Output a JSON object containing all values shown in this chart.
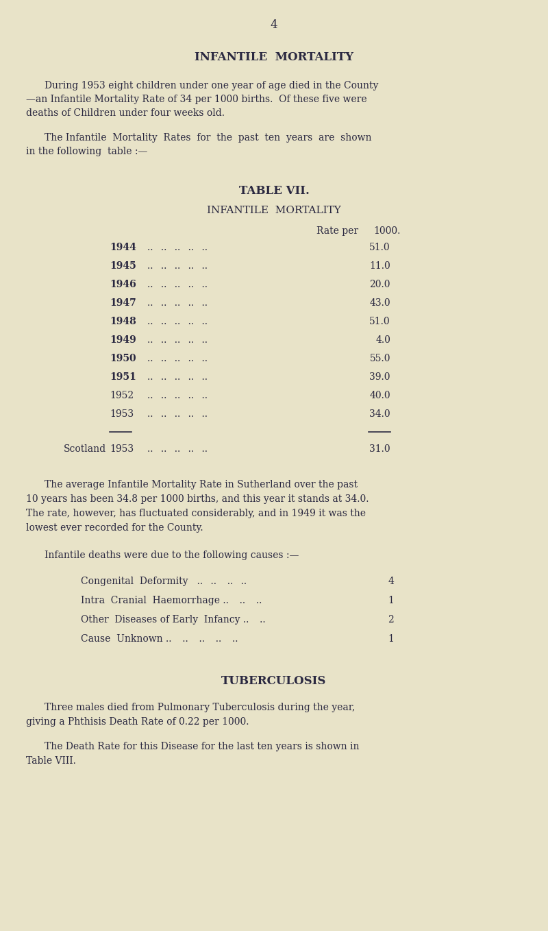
{
  "background_color": "#e8e3c8",
  "text_color": "#2a2840",
  "page_number": "4",
  "section_title": "INFANTILE  MORTALITY",
  "para1_line1": "During 1953 eight children under one year of age died in the County",
  "para1_line2": "—an Infantile Mortality Rate of 34 per 1000 births.  Of these five were",
  "para1_line3": "deaths of Children under four weeks old.",
  "para2_line1": "The Infantile  Mortality  Rates  for  the  past  ten  years  are  shown",
  "para2_line2": "in the following  table :—",
  "table_title": "TABLE VII.",
  "table_subtitle": "INFANTILE  MORTALITY",
  "table_header_left": "Rate per",
  "table_header_right": "1000.",
  "table_years": [
    "1944",
    "1945",
    "1946",
    "1947",
    "1948",
    "1949",
    "1950",
    "1951",
    "1952",
    "1953"
  ],
  "table_rates": [
    "51.0",
    "11.0",
    "20.0",
    "43.0",
    "51.0",
    "4.0",
    "55.0",
    "39.0",
    "40.0",
    "34.0"
  ],
  "table_dots": "..  ..  ..  ..  ..",
  "scotland_year": "1953",
  "scotland_dots": "..  ..  ..  ..  ..",
  "scotland_rate": "31.0",
  "para3_line1": "The average Infantile Mortality Rate in Sutherland over the past",
  "para3_line2": "10 years has been 34.8 per 1000 births, and this year it stands at 34.0.",
  "para3_line3": "The rate, however, has fluctuated considerably, and in 1949 it was the",
  "para3_line4": "lowest ever recorded for the County.",
  "causes_intro": "Infantile deaths were due to the following causes :—",
  "cause1_text": "Congenital  Deformity   ..  ..   ..  ..",
  "cause1_num": "4",
  "cause2_text": "Intra  Cranial  Haemorrhage ..   ..   ..",
  "cause2_num": "1",
  "cause3_text": "Other  Diseases of Early  Infancy ..   ..",
  "cause3_num": "2",
  "cause4_text": "Cause  Unknown ..   ..   ..   ..   ..",
  "cause4_num": "1",
  "tb_title": "TUBERCULOSIS",
  "tb_para1_line1": "Three males died from Pulmonary Tuberculosis during the year,",
  "tb_para1_line2": "giving a Phthisis Death Rate of 0.22 per 1000.",
  "tb_para2_line1": "The Death Rate for this Disease for the last ten years is shown in",
  "tb_para2_line2": "Table VIII."
}
